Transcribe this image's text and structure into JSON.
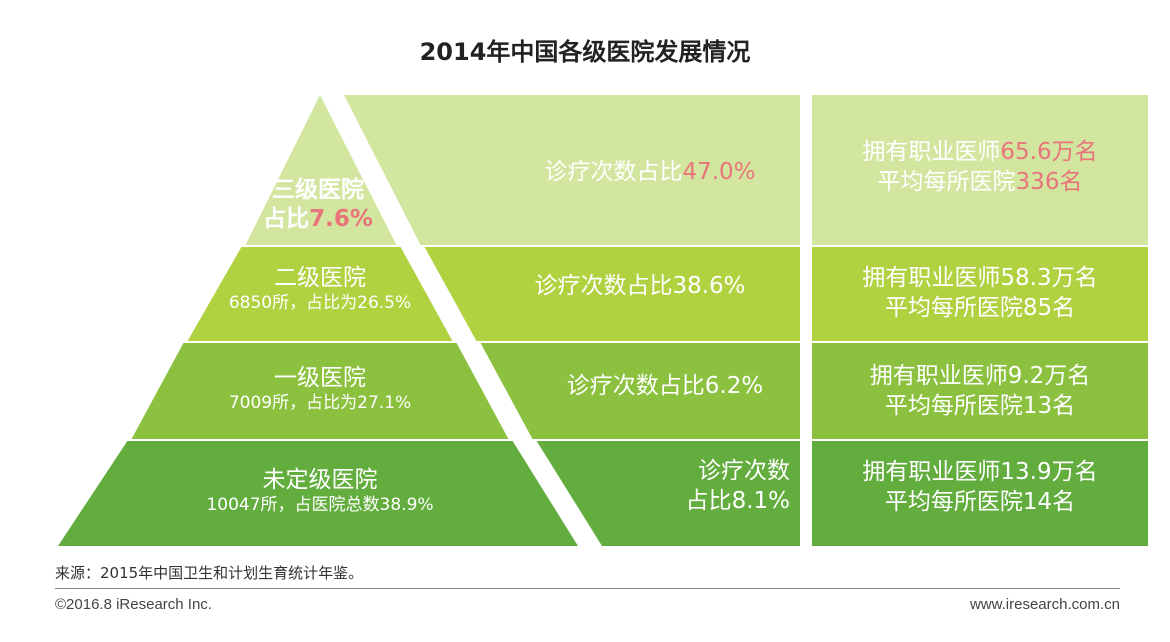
{
  "title": "2014年中国各级医院发展情况",
  "colors": {
    "tier1_bg": "#d3e6a0",
    "tier2_bg": "#b0d140",
    "tier3_bg": "#8cc13f",
    "tier4_bg": "#62ad3e",
    "highlight": "#e8747c"
  },
  "tiers": [
    {
      "name": "三级医院",
      "share_prefix": "占比",
      "share_value": "7.6%",
      "visits_prefix": "诊疗次数占比",
      "visits_value": "47.0%",
      "doctors_prefix": "拥有职业医师",
      "doctors_value": "65.6万名",
      "avg_prefix": "平均每所医院",
      "avg_value": "336名"
    },
    {
      "name": "二级医院",
      "detail": "6850所，占比为26.5%",
      "visits": "诊疗次数占比38.6%",
      "doctors": "拥有职业医师58.3万名",
      "avg": "平均每所医院85名"
    },
    {
      "name": "一级医院",
      "detail": "7009所，占比为27.1%",
      "visits": "诊疗次数占比6.2%",
      "doctors": "拥有职业医师9.2万名",
      "avg": "平均每所医院13名"
    },
    {
      "name": "未定级医院",
      "detail": "10047所，占医院总数38.9%",
      "visits_line1": "诊疗次数",
      "visits_line2": "占比8.1%",
      "doctors": "拥有职业医师13.9万名",
      "avg": "平均每所医院14名"
    }
  ],
  "source": "来源：2015年中国卫生和计划生育统计年鉴。",
  "footer_left": "©2016.8 iResearch Inc.",
  "footer_right": "www.iresearch.com.cn"
}
